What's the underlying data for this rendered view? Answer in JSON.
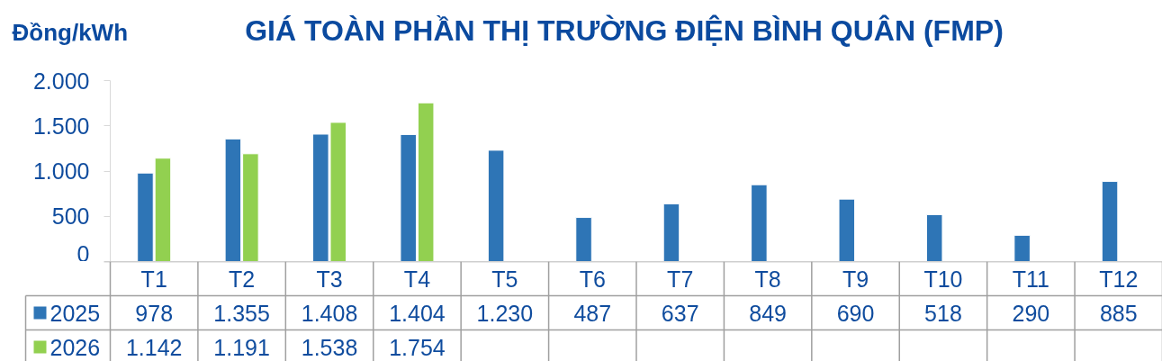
{
  "chart_data": {
    "type": "bar",
    "title": "GIÁ TOÀN PHẦN THỊ TRƯỜNG ĐIỆN BÌNH QUÂN (FMP)",
    "ylabel": "Đồng/kWh",
    "categories": [
      "T1",
      "T2",
      "T3",
      "T4",
      "T5",
      "T6",
      "T7",
      "T8",
      "T9",
      "T10",
      "T11",
      "T12"
    ],
    "series": [
      {
        "name": "2025",
        "color": "#2e75b6",
        "values": [
          978,
          1355,
          1408,
          1404,
          1230,
          487,
          637,
          849,
          690,
          518,
          290,
          885
        ],
        "value_labels": [
          "978",
          "1.355",
          "1.408",
          "1.404",
          "1.230",
          "487",
          "637",
          "849",
          "690",
          "518",
          "290",
          "885"
        ]
      },
      {
        "name": "2026",
        "color": "#92d050",
        "values": [
          1142,
          1191,
          1538,
          1754,
          null,
          null,
          null,
          null,
          null,
          null,
          null,
          null
        ],
        "value_labels": [
          "1.142",
          "1.191",
          "1.538",
          "1.754",
          null,
          null,
          null,
          null,
          null,
          null,
          null,
          null
        ]
      }
    ],
    "ylim": [
      0,
      2000
    ],
    "yticks": [
      0,
      500,
      {
        "value": 1000,
        "label": "1.000"
      },
      {
        "value": 1500,
        "label": "1.500"
      },
      {
        "value": 2000,
        "label": "2.000"
      }
    ],
    "grid": false,
    "legend": "bottom left"
  }
}
